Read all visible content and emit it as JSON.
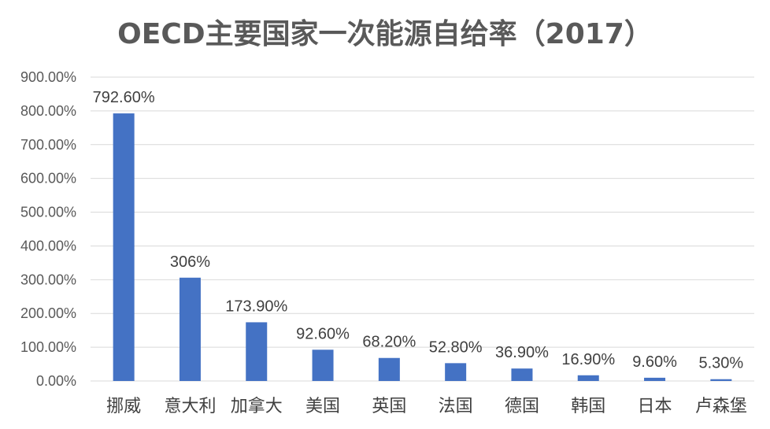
{
  "chart_data": {
    "type": "bar",
    "title": "OECD主要国家一次能源自给率（2017）",
    "categories": [
      "挪威",
      "意大利",
      "加拿大",
      "美国",
      "英国",
      "法国",
      "德国",
      "韩国",
      "日本",
      "卢森堡"
    ],
    "values": [
      792.6,
      306,
      173.9,
      92.6,
      68.2,
      52.8,
      36.9,
      16.9,
      9.6,
      5.3
    ],
    "data_labels": [
      "792.60%",
      "306%",
      "173.90%",
      "92.60%",
      "68.20%",
      "52.80%",
      "36.90%",
      "16.90%",
      "9.60%",
      "5.30%"
    ],
    "y_ticks": [
      0,
      100,
      200,
      300,
      400,
      500,
      600,
      700,
      800,
      900
    ],
    "y_tick_labels": [
      "0.00%",
      "100.00%",
      "200.00%",
      "300.00%",
      "400.00%",
      "500.00%",
      "600.00%",
      "700.00%",
      "800.00%",
      "900.00%"
    ],
    "ylim": [
      0,
      900
    ],
    "xlabel": "",
    "ylabel": "",
    "grid": true,
    "bar_color": "#4472C4",
    "grid_color": "#D9D9D9"
  }
}
